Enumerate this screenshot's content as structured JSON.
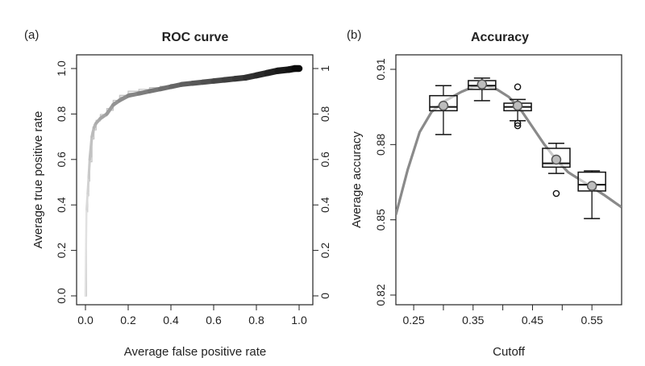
{
  "chart_data": [
    {
      "type": "line",
      "panel_label": "(a)",
      "title": "ROC curve",
      "xlabel": "Average false positive rate",
      "ylabel": "Average true positive rate",
      "xlim": [
        0,
        1
      ],
      "ylim": [
        0,
        1
      ],
      "xticks": [
        "0.0",
        "0.2",
        "0.4",
        "0.6",
        "0.8",
        "1.0"
      ],
      "yticks": [
        "0.0",
        "0.2",
        "0.4",
        "0.6",
        "0.8",
        "1.0"
      ],
      "colorbar": {
        "range": [
          0,
          1
        ],
        "ticks": [
          "0",
          "0.2",
          "0.4",
          "0.6",
          "0.8",
          "1"
        ]
      },
      "series": [
        {
          "name": "averaged ROC (threshold-colored)",
          "x": [
            0.0,
            0.005,
            0.01,
            0.015,
            0.02,
            0.03,
            0.04,
            0.05,
            0.07,
            0.1,
            0.13,
            0.16,
            0.2,
            0.25,
            0.3,
            0.35,
            0.4,
            0.45,
            0.5,
            0.55,
            0.6,
            0.65,
            0.7,
            0.75,
            0.8,
            0.85,
            0.9,
            0.95,
            0.98,
            1.0
          ],
          "y": [
            0.0,
            0.38,
            0.45,
            0.52,
            0.6,
            0.7,
            0.74,
            0.76,
            0.78,
            0.8,
            0.84,
            0.86,
            0.88,
            0.89,
            0.9,
            0.91,
            0.92,
            0.93,
            0.935,
            0.94,
            0.945,
            0.95,
            0.955,
            0.96,
            0.97,
            0.98,
            0.99,
            0.995,
            1.0,
            1.0
          ]
        }
      ]
    },
    {
      "type": "box",
      "panel_label": "(b)",
      "title": "Accuracy",
      "xlabel": "Cutoff",
      "ylabel": "Average accuracy",
      "xlim": [
        0.22,
        0.6
      ],
      "ylim": [
        0.82,
        0.91
      ],
      "xticks": [
        "0.25",
        "0.35",
        "0.45",
        "0.55"
      ],
      "yticks": [
        "0.82",
        "0.85",
        "0.88",
        "0.91"
      ],
      "boxes": [
        {
          "x": 0.3,
          "min": 0.884,
          "q1": 0.8935,
          "median": 0.895,
          "q3": 0.8995,
          "max": 0.9035,
          "mean": 0.8955,
          "outliers": []
        },
        {
          "x": 0.365,
          "min": 0.8975,
          "q1": 0.902,
          "median": 0.9035,
          "q3": 0.9055,
          "max": 0.9065,
          "mean": 0.904,
          "outliers": []
        },
        {
          "x": 0.425,
          "min": 0.8895,
          "q1": 0.8935,
          "median": 0.895,
          "q3": 0.8965,
          "max": 0.898,
          "mean": 0.8955,
          "outliers": [
            0.903,
            0.8885,
            0.8875
          ]
        },
        {
          "x": 0.49,
          "min": 0.8685,
          "q1": 0.871,
          "median": 0.8725,
          "q3": 0.8785,
          "max": 0.8805,
          "mean": 0.874,
          "outliers": [
            0.8605
          ]
        },
        {
          "x": 0.55,
          "min": 0.8505,
          "q1": 0.8615,
          "median": 0.864,
          "q3": 0.869,
          "max": 0.8695,
          "mean": 0.8635,
          "outliers": []
        }
      ],
      "series": [
        {
          "name": "mean accuracy curve",
          "x": [
            0.22,
            0.24,
            0.26,
            0.28,
            0.3,
            0.33,
            0.35,
            0.37,
            0.39,
            0.41,
            0.43,
            0.45,
            0.47,
            0.49,
            0.51,
            0.53,
            0.55,
            0.57,
            0.6
          ],
          "y": [
            0.852,
            0.87,
            0.885,
            0.893,
            0.897,
            0.901,
            0.903,
            0.9035,
            0.902,
            0.899,
            0.894,
            0.887,
            0.88,
            0.874,
            0.869,
            0.866,
            0.863,
            0.86,
            0.855
          ]
        }
      ]
    }
  ]
}
